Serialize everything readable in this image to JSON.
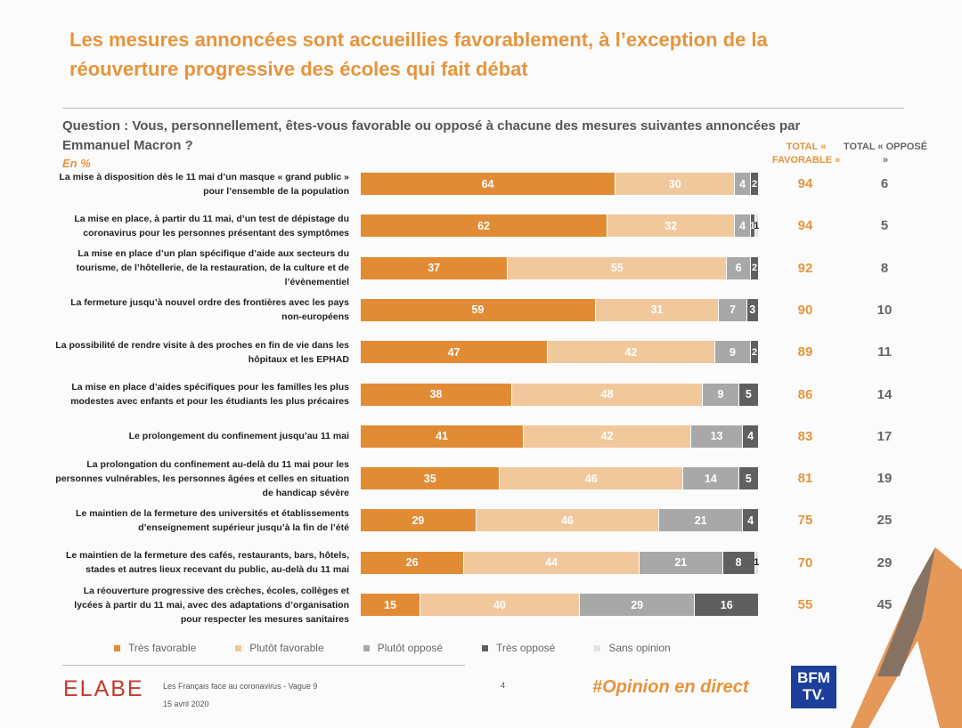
{
  "title": "Les mesures annoncées sont accueillies favorablement, à l’exception de la réouverture progressive des écoles qui fait débat",
  "question": "Question : Vous, personnellement, êtes-vous favorable ou opposé à chacune des mesures suivantes annoncées par Emmanuel Macron ?",
  "unit_label": "En %",
  "col_headers": {
    "fav": "TOTAL « FAVORABLE »",
    "opp": "TOTAL « OPPOSÉ »"
  },
  "colors": {
    "tres_fav": "#e18b35",
    "plutot_fav": "#f1c89c",
    "plutot_opp": "#a8a8a8",
    "tres_opp": "#5f5f5f",
    "sans_opinion": "#e3e3e3"
  },
  "chart_data": {
    "type": "bar",
    "orientation": "horizontal-stacked",
    "title": "Les mesures annoncées sont accueillies favorablement, à l’exception de la réouverture progressive des écoles qui fait débat",
    "xlabel": "",
    "ylabel": "",
    "xlim": [
      0,
      100
    ],
    "categories": [
      "La mise à disposition dès le 11 mai d’un masque « grand public » pour l’ensemble de la population",
      "La mise en place, à partir du 11 mai, d’un test de dépistage du coronavirus pour les personnes présentant des symptômes",
      "La mise en place d’un plan spécifique d’aide aux secteurs du tourisme, de l’hôtellerie, de la restauration, de la culture et de l’évènementiel",
      "La fermeture jusqu’à nouvel ordre des frontières avec les pays non-européens",
      "La possibilité de rendre visite à des proches en fin de vie dans les hôpitaux et les EPHAD",
      "La mise en place d’aides spécifiques pour les familles les plus modestes avec enfants et pour les étudiants les plus précaires",
      "Le prolongement du confinement jusqu’au 11 mai",
      "La prolongation du confinement au-delà du 11 mai pour les personnes vulnérables, les personnes âgées et celles en situation de handicap sévère",
      "Le maintien de la fermeture des universités et établissements d’enseignement supérieur jusqu’à la fin de l’été",
      "Le maintien de la fermeture des cafés, restaurants, bars, hôtels, stades et autres lieux recevant du public, au-delà du 11 mai",
      "La réouverture progressive des crèches, écoles, collèges et lycées à partir du 11 mai, avec des adaptations d’organisation pour respecter les mesures sanitaires"
    ],
    "series": [
      {
        "name": "Très favorable",
        "values": [
          64,
          62,
          37,
          59,
          47,
          38,
          41,
          35,
          29,
          26,
          15
        ]
      },
      {
        "name": "Plutôt favorable",
        "values": [
          30,
          32,
          55,
          31,
          42,
          48,
          42,
          46,
          46,
          44,
          40
        ]
      },
      {
        "name": "Plutôt opposé",
        "values": [
          4,
          4,
          6,
          7,
          9,
          9,
          13,
          14,
          21,
          21,
          29
        ]
      },
      {
        "name": "Très opposé",
        "values": [
          2,
          1,
          2,
          3,
          2,
          5,
          4,
          5,
          4,
          8,
          16
        ]
      },
      {
        "name": "Sans opinion",
        "values": [
          0,
          1,
          0,
          0,
          0,
          0,
          0,
          0,
          0,
          1,
          0
        ]
      }
    ],
    "total_favorable": [
      94,
      94,
      92,
      90,
      89,
      86,
      83,
      81,
      75,
      70,
      55
    ],
    "total_oppose": [
      6,
      5,
      8,
      10,
      11,
      14,
      17,
      19,
      25,
      29,
      45
    ],
    "legend": [
      "Très favorable",
      "Plutôt favorable",
      "Plutôt opposé",
      "Très opposé",
      "Sans opinion"
    ]
  },
  "footer": {
    "brand": "ELABE",
    "survey": "Les Français face au coronavirus - Vague 9",
    "date": "15 avril 2020",
    "page": "4",
    "hashtag": "#Opinion en direct",
    "bfm_line1": "BFM",
    "bfm_line2": "TV."
  }
}
